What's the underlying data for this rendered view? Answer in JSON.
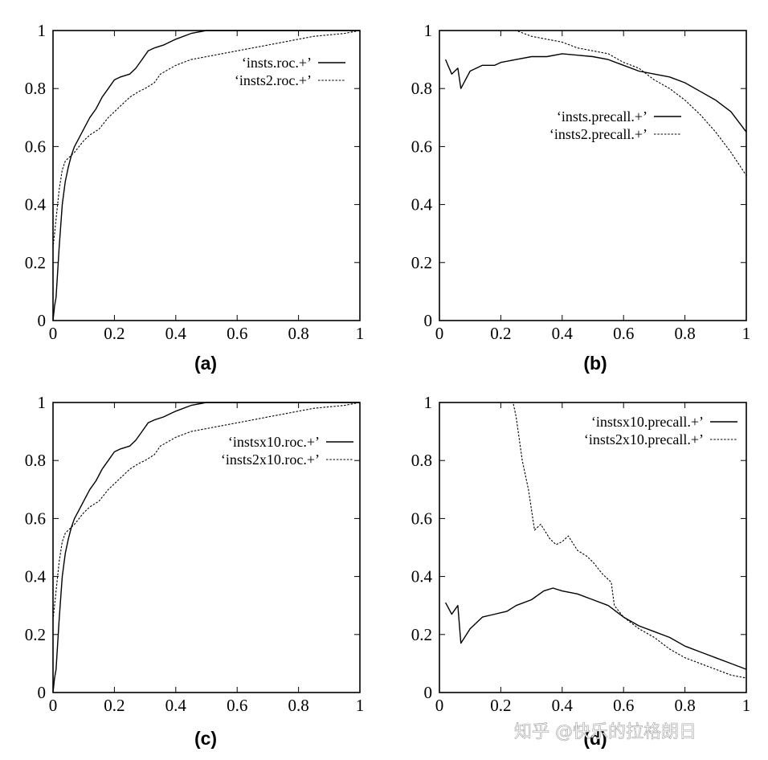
{
  "watermark": "知乎 @快乐的拉格朗日",
  "chart_data": [
    {
      "type": "line",
      "panel_label": "(a)",
      "xlim": [
        0,
        1
      ],
      "ylim": [
        0,
        1
      ],
      "xticks": [
        "0",
        "0.2",
        "0.4",
        "0.6",
        "0.8",
        "1"
      ],
      "yticks": [
        "0",
        "0.2",
        "0.4",
        "0.6",
        "0.8",
        "1"
      ],
      "series": [
        {
          "name": "‘insts.roc.+’",
          "style": "solid",
          "x": [
            0,
            0.005,
            0.01,
            0.02,
            0.03,
            0.04,
            0.05,
            0.06,
            0.07,
            0.08,
            0.1,
            0.12,
            0.14,
            0.16,
            0.18,
            0.2,
            0.22,
            0.25,
            0.27,
            0.29,
            0.31,
            0.33,
            0.36,
            0.4,
            0.45,
            0.5,
            0.55,
            0.6,
            0.7,
            0.8,
            0.9,
            1
          ],
          "y": [
            0,
            0.05,
            0.08,
            0.25,
            0.4,
            0.48,
            0.53,
            0.57,
            0.6,
            0.62,
            0.66,
            0.7,
            0.73,
            0.77,
            0.8,
            0.83,
            0.84,
            0.85,
            0.87,
            0.9,
            0.93,
            0.94,
            0.95,
            0.97,
            0.99,
            1,
            1,
            1,
            1,
            1,
            1,
            1
          ]
        },
        {
          "name": "‘insts2.roc.+’",
          "style": "dashed",
          "x": [
            0,
            0.005,
            0.01,
            0.02,
            0.03,
            0.04,
            0.05,
            0.07,
            0.1,
            0.12,
            0.15,
            0.18,
            0.2,
            0.22,
            0.25,
            0.28,
            0.3,
            0.33,
            0.35,
            0.4,
            0.45,
            0.5,
            0.55,
            0.6,
            0.65,
            0.7,
            0.75,
            0.8,
            0.85,
            0.9,
            0.95,
            1
          ],
          "y": [
            0.25,
            0.3,
            0.35,
            0.45,
            0.52,
            0.55,
            0.56,
            0.58,
            0.62,
            0.64,
            0.66,
            0.7,
            0.72,
            0.74,
            0.77,
            0.79,
            0.8,
            0.82,
            0.85,
            0.88,
            0.9,
            0.91,
            0.92,
            0.93,
            0.94,
            0.95,
            0.96,
            0.97,
            0.98,
            0.985,
            0.99,
            1
          ]
        }
      ]
    },
    {
      "type": "line",
      "panel_label": "(b)",
      "xlim": [
        0,
        1
      ],
      "ylim": [
        0,
        1
      ],
      "xticks": [
        "0",
        "0.2",
        "0.4",
        "0.6",
        "0.8",
        "1"
      ],
      "yticks": [
        "0",
        "0.2",
        "0.4",
        "0.6",
        "0.8",
        "1"
      ],
      "series": [
        {
          "name": "‘insts.precall.+’",
          "style": "solid",
          "x": [
            0.02,
            0.04,
            0.06,
            0.07,
            0.1,
            0.14,
            0.18,
            0.2,
            0.25,
            0.3,
            0.35,
            0.4,
            0.45,
            0.5,
            0.55,
            0.6,
            0.65,
            0.7,
            0.75,
            0.8,
            0.85,
            0.9,
            0.95,
            1
          ],
          "y": [
            0.9,
            0.85,
            0.87,
            0.8,
            0.86,
            0.88,
            0.88,
            0.89,
            0.9,
            0.91,
            0.91,
            0.92,
            0.915,
            0.91,
            0.9,
            0.88,
            0.86,
            0.85,
            0.84,
            0.82,
            0.79,
            0.76,
            0.72,
            0.65
          ]
        },
        {
          "name": "‘insts2.precall.+’",
          "style": "dashed",
          "x": [
            0.02,
            0.1,
            0.2,
            0.25,
            0.3,
            0.35,
            0.4,
            0.45,
            0.5,
            0.55,
            0.6,
            0.65,
            0.7,
            0.75,
            0.8,
            0.85,
            0.9,
            0.95,
            1
          ],
          "y": [
            1,
            1,
            1,
            1,
            0.98,
            0.97,
            0.96,
            0.94,
            0.93,
            0.92,
            0.89,
            0.87,
            0.83,
            0.8,
            0.76,
            0.71,
            0.65,
            0.58,
            0.5
          ]
        }
      ]
    },
    {
      "type": "line",
      "panel_label": "(c)",
      "xlim": [
        0,
        1
      ],
      "ylim": [
        0,
        1
      ],
      "xticks": [
        "0",
        "0.2",
        "0.4",
        "0.6",
        "0.8",
        "1"
      ],
      "yticks": [
        "0",
        "0.2",
        "0.4",
        "0.6",
        "0.8",
        "1"
      ],
      "series": [
        {
          "name": "‘instsx10.roc.+’",
          "style": "solid",
          "x": [
            0,
            0.005,
            0.01,
            0.02,
            0.03,
            0.04,
            0.05,
            0.06,
            0.07,
            0.08,
            0.1,
            0.12,
            0.14,
            0.16,
            0.18,
            0.2,
            0.22,
            0.25,
            0.27,
            0.29,
            0.31,
            0.33,
            0.36,
            0.4,
            0.45,
            0.5,
            0.55,
            0.6,
            0.7,
            0.8,
            0.9,
            1
          ],
          "y": [
            0,
            0.05,
            0.08,
            0.25,
            0.4,
            0.48,
            0.53,
            0.57,
            0.6,
            0.62,
            0.66,
            0.7,
            0.73,
            0.77,
            0.8,
            0.83,
            0.84,
            0.85,
            0.87,
            0.9,
            0.93,
            0.94,
            0.95,
            0.97,
            0.99,
            1,
            1,
            1,
            1,
            1,
            1,
            1
          ]
        },
        {
          "name": "‘insts2x10.roc.+’",
          "style": "dashed",
          "x": [
            0,
            0.005,
            0.01,
            0.02,
            0.03,
            0.04,
            0.05,
            0.07,
            0.1,
            0.12,
            0.15,
            0.18,
            0.2,
            0.22,
            0.25,
            0.28,
            0.3,
            0.33,
            0.35,
            0.4,
            0.45,
            0.5,
            0.55,
            0.6,
            0.65,
            0.7,
            0.75,
            0.8,
            0.85,
            0.9,
            0.95,
            1
          ],
          "y": [
            0.25,
            0.3,
            0.35,
            0.45,
            0.52,
            0.55,
            0.56,
            0.58,
            0.62,
            0.64,
            0.66,
            0.7,
            0.72,
            0.74,
            0.77,
            0.79,
            0.8,
            0.82,
            0.85,
            0.88,
            0.9,
            0.91,
            0.92,
            0.93,
            0.94,
            0.95,
            0.96,
            0.97,
            0.98,
            0.985,
            0.99,
            1
          ]
        }
      ]
    },
    {
      "type": "line",
      "panel_label": "(d)",
      "xlim": [
        0,
        1
      ],
      "ylim": [
        0,
        1
      ],
      "xticks": [
        "0",
        "0.2",
        "0.4",
        "0.6",
        "0.8",
        "1"
      ],
      "yticks": [
        "0",
        "0.2",
        "0.4",
        "0.6",
        "0.8",
        "1"
      ],
      "series": [
        {
          "name": "‘instsx10.precall.+’",
          "style": "solid",
          "x": [
            0.02,
            0.04,
            0.06,
            0.07,
            0.1,
            0.14,
            0.18,
            0.22,
            0.25,
            0.3,
            0.34,
            0.37,
            0.4,
            0.45,
            0.5,
            0.55,
            0.6,
            0.65,
            0.7,
            0.75,
            0.8,
            0.85,
            0.9,
            0.95,
            1
          ],
          "y": [
            0.31,
            0.27,
            0.3,
            0.17,
            0.22,
            0.26,
            0.27,
            0.28,
            0.3,
            0.32,
            0.35,
            0.36,
            0.35,
            0.34,
            0.32,
            0.3,
            0.26,
            0.23,
            0.21,
            0.19,
            0.16,
            0.14,
            0.12,
            0.1,
            0.08
          ]
        },
        {
          "name": "‘insts2x10.precall.+’",
          "style": "dashed",
          "x": [
            0.02,
            0.1,
            0.2,
            0.24,
            0.25,
            0.27,
            0.29,
            0.31,
            0.33,
            0.36,
            0.38,
            0.4,
            0.42,
            0.45,
            0.48,
            0.5,
            0.53,
            0.56,
            0.57,
            0.6,
            0.65,
            0.7,
            0.75,
            0.8,
            0.85,
            0.9,
            0.95,
            1
          ],
          "y": [
            1,
            1,
            1,
            1,
            0.95,
            0.8,
            0.7,
            0.56,
            0.58,
            0.53,
            0.51,
            0.52,
            0.54,
            0.49,
            0.47,
            0.45,
            0.41,
            0.38,
            0.3,
            0.26,
            0.22,
            0.19,
            0.15,
            0.12,
            0.1,
            0.08,
            0.06,
            0.05
          ]
        }
      ]
    }
  ]
}
